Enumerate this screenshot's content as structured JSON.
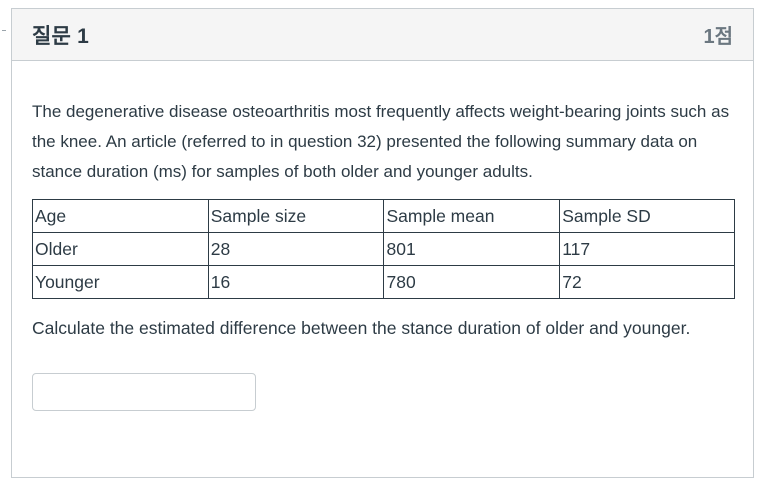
{
  "question": {
    "title": "질문 1",
    "points": "1점",
    "text": "The degenerative disease osteoarthritis most frequently affects weight-bearing joints such as the knee. An article (referred to in question 32) presented the following summary data on stance duration (ms) for samples of both older and younger adults.",
    "table": {
      "headers": [
        "Age",
        "Sample size",
        "Sample mean",
        "Sample SD"
      ],
      "rows": [
        [
          "Older",
          "28",
          "801",
          "117"
        ],
        [
          "Younger",
          "16",
          "780",
          "72"
        ]
      ]
    },
    "prompt": "Calculate the estimated difference between the stance duration of older and younger.",
    "answer": {
      "value": "",
      "placeholder": ""
    }
  }
}
